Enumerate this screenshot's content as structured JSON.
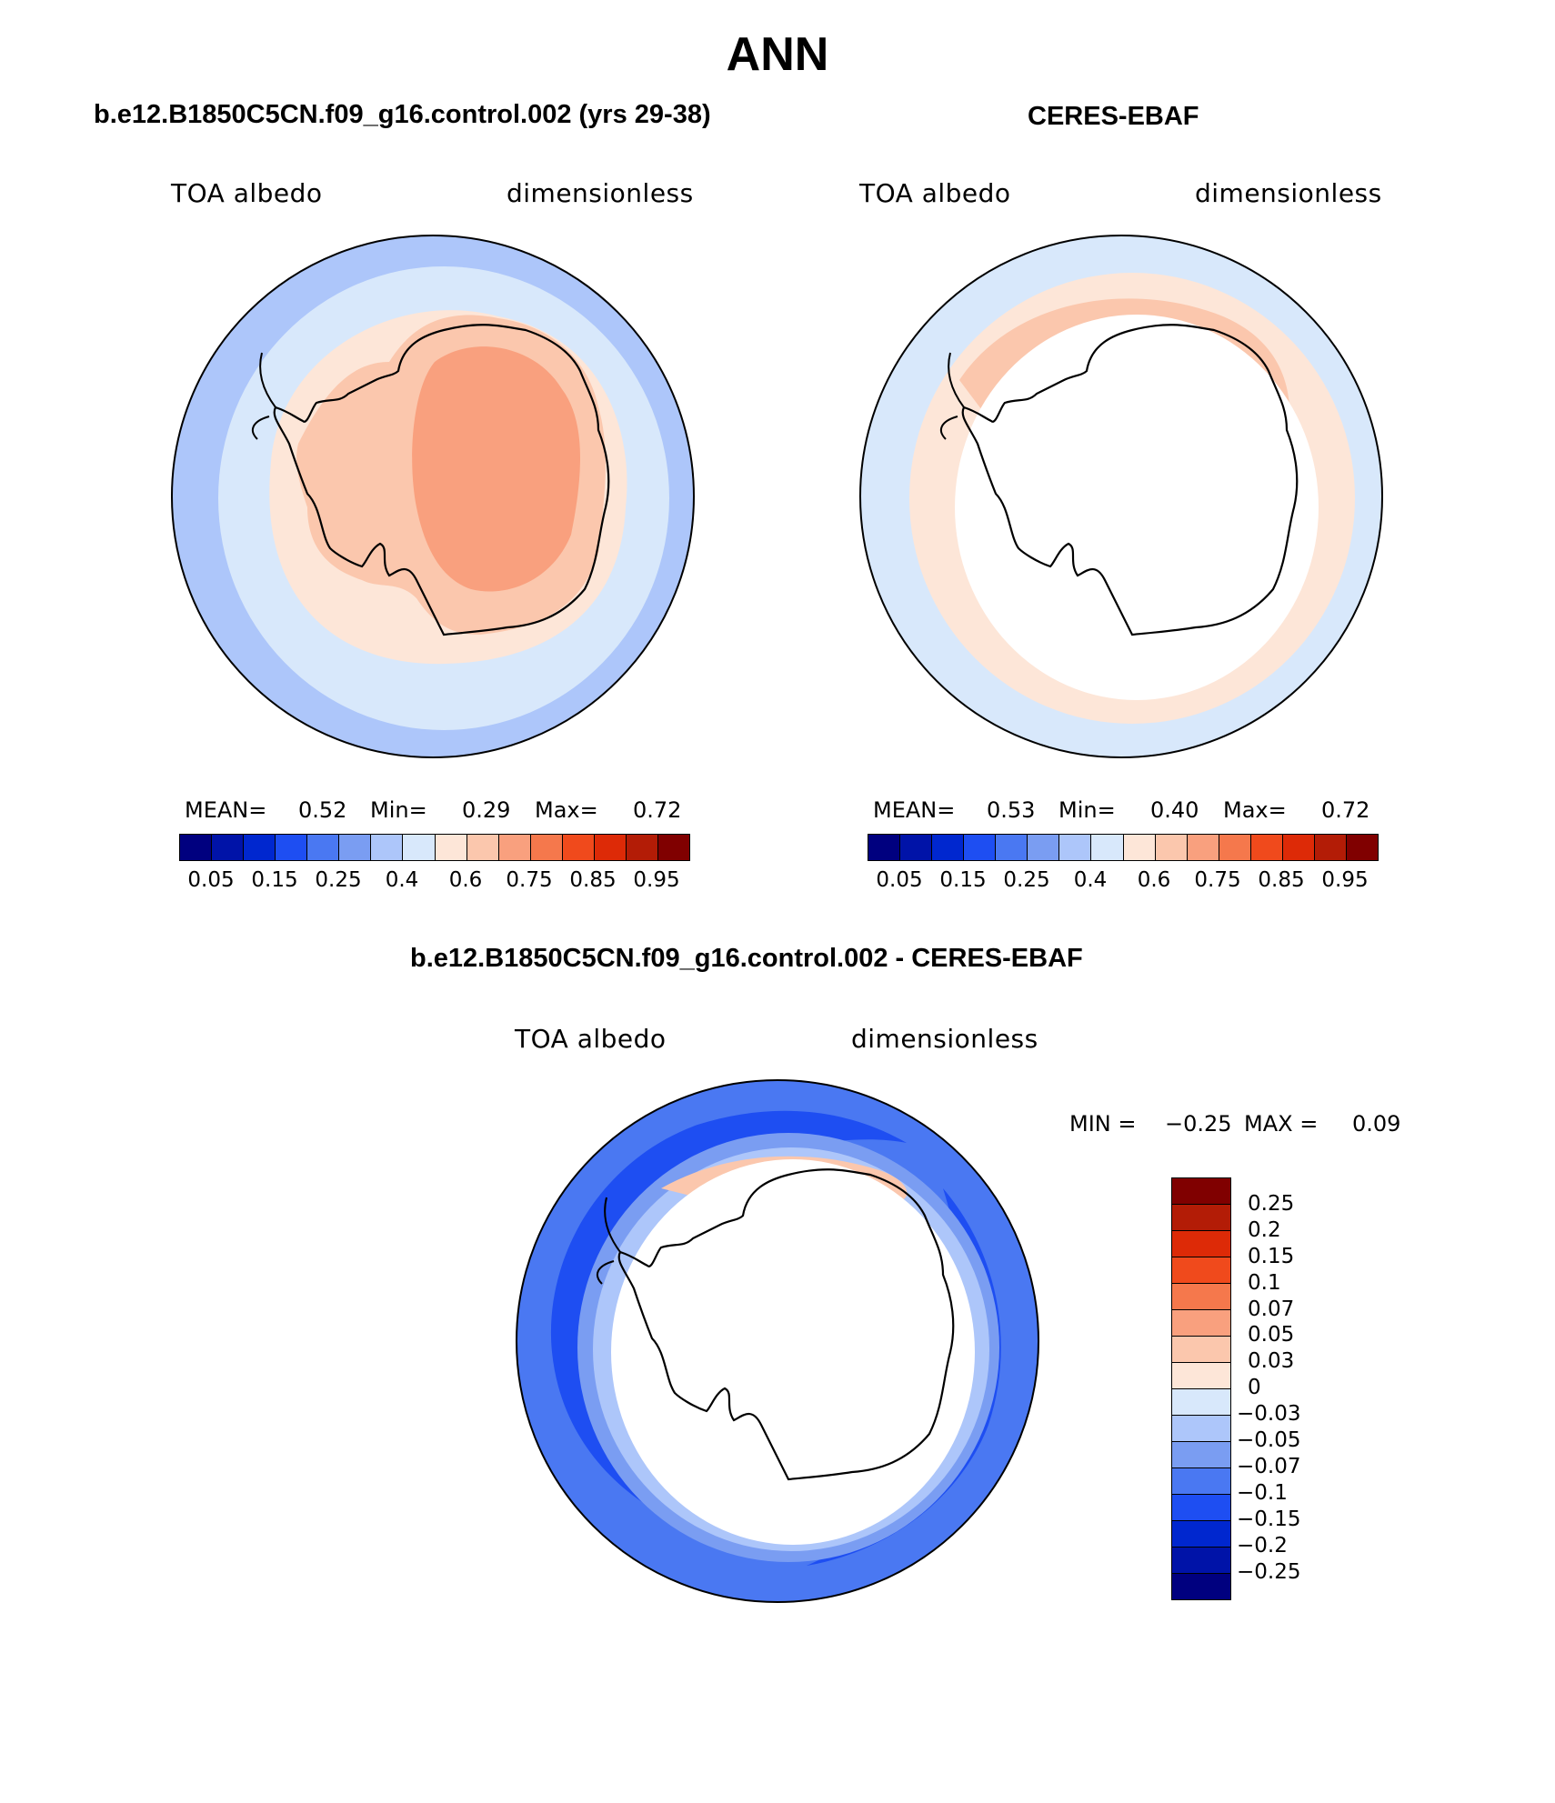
{
  "figure": {
    "title": "ANN",
    "panels": [
      {
        "id": "model",
        "title": "b.e12.B1850C5CN.f09_g16.control.002 (yrs 29-38)",
        "left_label": "TOA albedo",
        "right_label": "dimensionless",
        "stats": {
          "mean_label": "MEAN=",
          "mean": "0.52",
          "min_label": "Min=",
          "min": "0.29",
          "max_label": "Max=",
          "max": "0.72"
        },
        "missing_center": false
      },
      {
        "id": "obs",
        "title": "CERES-EBAF",
        "left_label": "TOA albedo",
        "right_label": "dimensionless",
        "stats": {
          "mean_label": "MEAN=",
          "mean": "0.53",
          "min_label": "Min=",
          "min": "0.40",
          "max_label": "Max=",
          "max": "0.72"
        },
        "missing_center": true
      },
      {
        "id": "diff",
        "title": "b.e12.B1850C5CN.f09_g16.control.002 - CERES-EBAF",
        "left_label": "TOA albedo",
        "right_label": "dimensionless",
        "stats": {
          "min_label": "MIN =",
          "min": "−0.25",
          "max_label": "MAX =",
          "max": "0.09"
        },
        "missing_center": true
      }
    ]
  },
  "colorbars": {
    "absolute": {
      "colors": [
        "#00007f",
        "#0013a8",
        "#0027cf",
        "#1e4ef2",
        "#4a78f2",
        "#7a9df2",
        "#adc6fa",
        "#d8e8fb",
        "#fde6d8",
        "#fbc7ad",
        "#f9a07e",
        "#f5784c",
        "#f04a1c",
        "#dd2a07",
        "#b31c06",
        "#800000"
      ],
      "tick_labels": [
        "0.05",
        "0.15",
        "0.25",
        "0.4",
        "0.6",
        "0.75",
        "0.85",
        "0.95"
      ]
    },
    "difference": {
      "colors": [
        "#800000",
        "#b31c06",
        "#dd2a07",
        "#f04a1c",
        "#f5784c",
        "#f9a07e",
        "#fbc7ad",
        "#fde6d8",
        "#d8e8fb",
        "#adc6fa",
        "#7a9df2",
        "#4a78f2",
        "#1e4ef2",
        "#0027cf",
        "#0013a8",
        "#00007f"
      ],
      "tick_labels": [
        "0.25",
        "0.2",
        "0.15",
        "0.1",
        "0.07",
        "0.05",
        "0.03",
        "0",
        "−0.03",
        "−0.05",
        "−0.07",
        "−0.1",
        "−0.15",
        "−0.2",
        "−0.25"
      ]
    }
  },
  "map_colors": {
    "outer_model": "#adc6fa",
    "ring2_model": "#d8e8fb",
    "ring3_model": "#fde6d8",
    "land_model": "#fbc7ad",
    "high_model": "#f9a07e",
    "outer_obs": "#d8e8fb",
    "ring_obs": "#fde6d8",
    "band_obs": "#fbc7ad",
    "diff_outer": "#4a78f2",
    "diff_mid": "#1e4ef2",
    "diff_light": "#7a9df2",
    "diff_pale": "#adc6fa",
    "missing": "#ffffff",
    "coast": "#000000"
  }
}
